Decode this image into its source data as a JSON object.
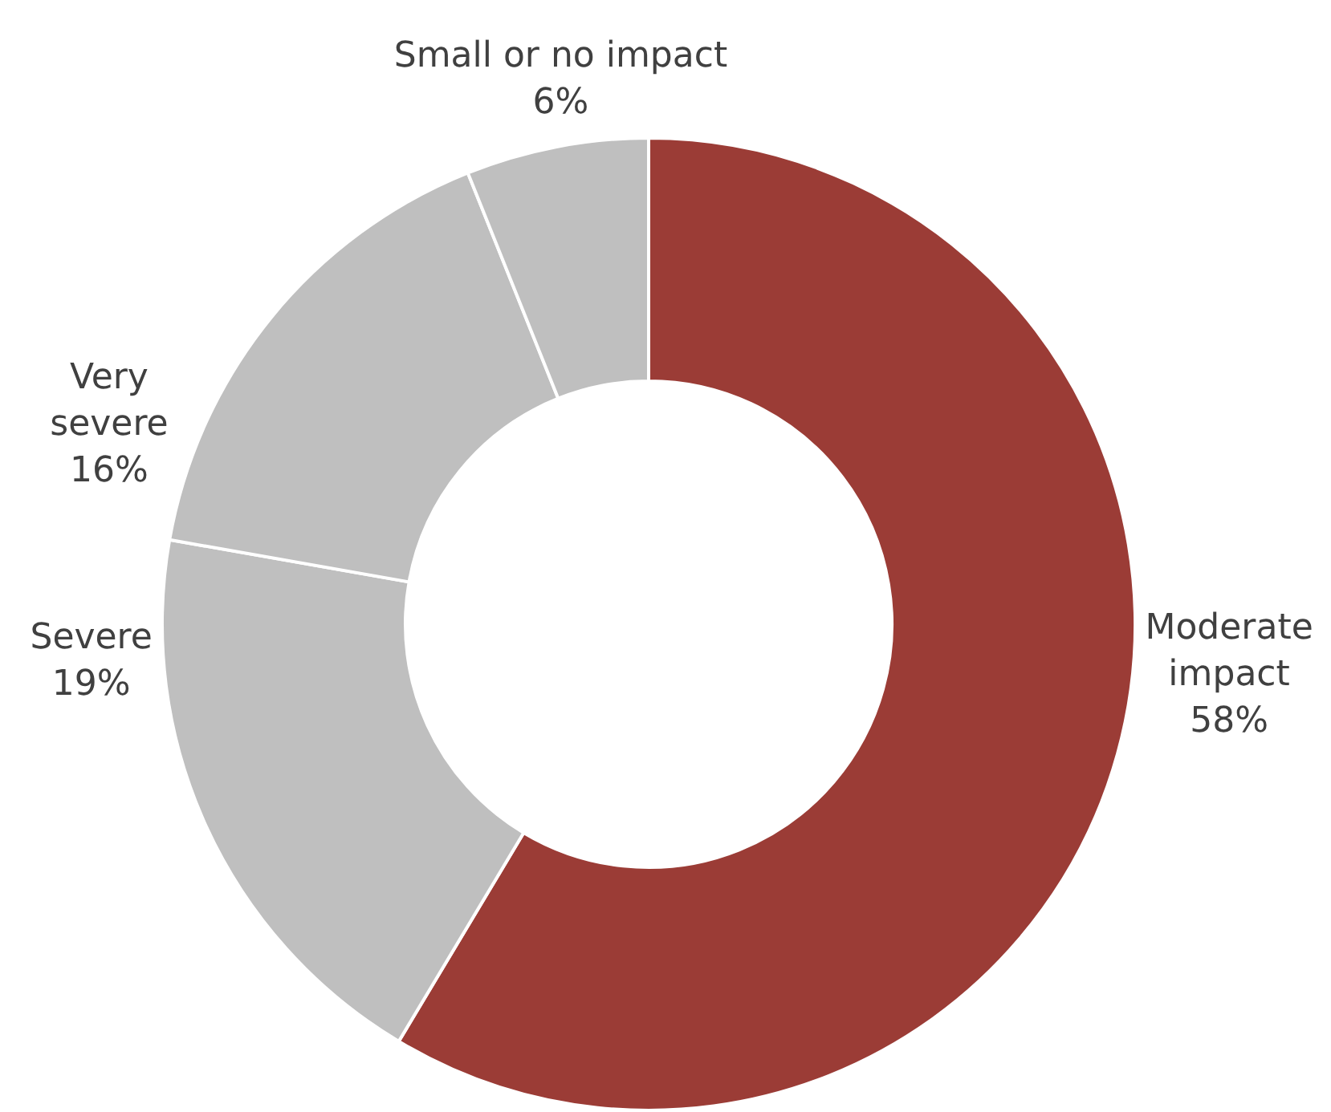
{
  "chart_data": {
    "type": "donut",
    "categories": [
      "Moderate impact",
      "Severe",
      "Very severe",
      "Small or no impact"
    ],
    "values": [
      58,
      19,
      16,
      6
    ],
    "colors": [
      "#9b3c36",
      "#bfbfbf",
      "#bfbfbf",
      "#bfbfbf"
    ],
    "value_labels": [
      "58%",
      "19%",
      "16%",
      "6%"
    ],
    "legend": false
  }
}
